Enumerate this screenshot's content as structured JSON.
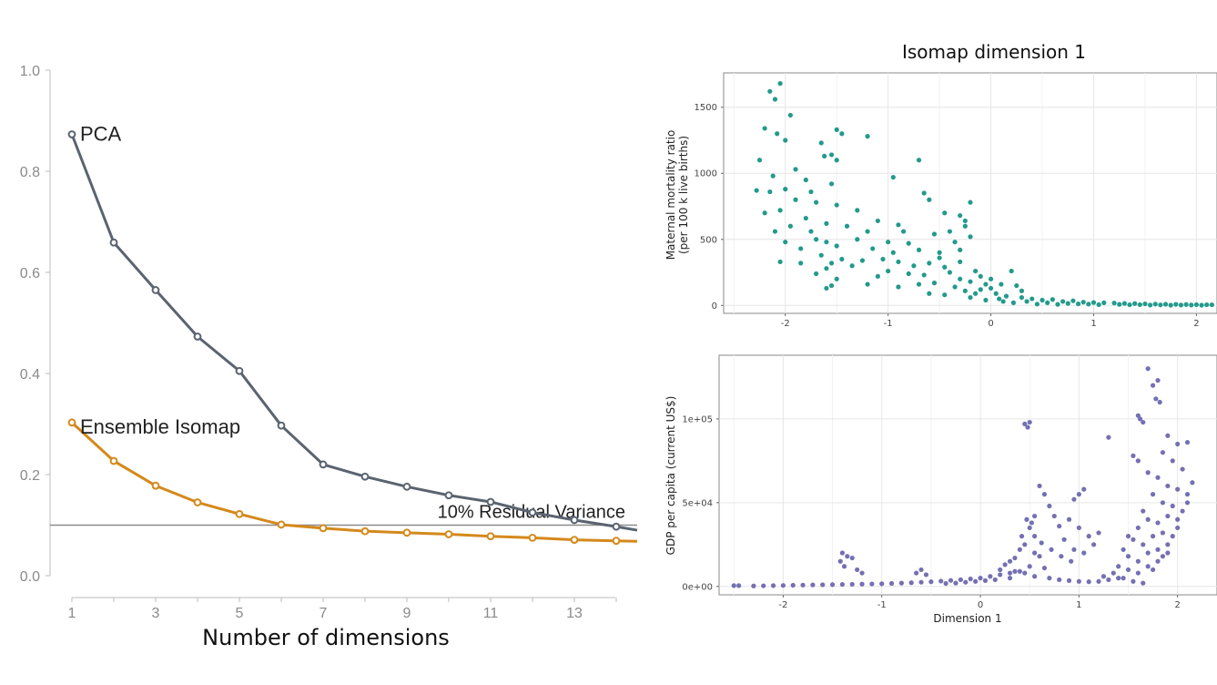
{
  "chart_data": [
    {
      "type": "line",
      "title": "",
      "xlabel": "Number of dimensions",
      "ylabel": "",
      "x": [
        1,
        2,
        3,
        4,
        5,
        6,
        7,
        8,
        9,
        10,
        11,
        12,
        13,
        14,
        14.5
      ],
      "xticks": [
        1,
        3,
        5,
        7,
        9,
        11,
        13
      ],
      "yticks": [
        "0.0",
        "0.2",
        "0.4",
        "0.6",
        "0.8",
        "1.0"
      ],
      "ylim": [
        0,
        1.0
      ],
      "xlim": [
        1,
        14.5
      ],
      "series": [
        {
          "name": "PCA",
          "color": "#5a6470",
          "values": [
            0.873,
            0.659,
            0.565,
            0.473,
            0.405,
            0.297,
            0.22,
            0.196,
            0.176,
            0.159,
            0.146,
            0.125,
            0.11,
            0.097,
            0.09
          ]
        },
        {
          "name": "Ensemble Isomap",
          "color": "#d4891a",
          "values": [
            0.303,
            0.227,
            0.178,
            0.145,
            0.122,
            0.101,
            0.094,
            0.088,
            0.085,
            0.082,
            0.078,
            0.075,
            0.071,
            0.069,
            0.068
          ]
        }
      ],
      "reference_line": {
        "y": 0.1,
        "label": "10% Residual Variance"
      },
      "grid": false
    },
    {
      "type": "scatter",
      "title": "Isomap dimension 1",
      "xlabel": "",
      "ylabel_line1": "Maternal mortality ratio",
      "ylabel_line2": "(per 100 k live births)",
      "xticks": [
        "-2",
        "-1",
        "0",
        "1",
        "2"
      ],
      "yticks": [
        "0",
        "500",
        "1000",
        "1500"
      ],
      "xlim": [
        -2.6,
        2.2
      ],
      "ylim": [
        -60,
        1760
      ],
      "color": "#229a8c",
      "grid": true,
      "points": [
        [
          -2.05,
          1680
        ],
        [
          -2.15,
          1620
        ],
        [
          -2.1,
          1560
        ],
        [
          -1.95,
          1440
        ],
        [
          -2.2,
          1340
        ],
        [
          -1.5,
          1330
        ],
        [
          -1.45,
          1300
        ],
        [
          -1.2,
          1280
        ],
        [
          -2.08,
          1300
        ],
        [
          -2.0,
          1250
        ],
        [
          -1.65,
          1230
        ],
        [
          -1.62,
          1130
        ],
        [
          -1.55,
          1140
        ],
        [
          -1.5,
          1100
        ],
        [
          -0.7,
          1100
        ],
        [
          -0.95,
          970
        ],
        [
          -2.25,
          1100
        ],
        [
          -1.9,
          1030
        ],
        [
          -2.12,
          980
        ],
        [
          -1.8,
          950
        ],
        [
          -2.0,
          880
        ],
        [
          -1.75,
          860
        ],
        [
          -2.15,
          860
        ],
        [
          -2.28,
          870
        ],
        [
          -1.55,
          920
        ],
        [
          -1.7,
          780
        ],
        [
          -1.9,
          800
        ],
        [
          -2.05,
          720
        ],
        [
          -2.2,
          700
        ],
        [
          -1.5,
          760
        ],
        [
          -1.3,
          720
        ],
        [
          -1.8,
          660
        ],
        [
          -1.6,
          620
        ],
        [
          -1.95,
          600
        ],
        [
          -2.1,
          560
        ],
        [
          -1.4,
          600
        ],
        [
          -1.2,
          560
        ],
        [
          -1.1,
          640
        ],
        [
          -0.9,
          610
        ],
        [
          -0.85,
          560
        ],
        [
          -0.3,
          680
        ],
        [
          -0.45,
          700
        ],
        [
          -0.25,
          640
        ],
        [
          -0.2,
          780
        ],
        [
          -0.6,
          800
        ],
        [
          -0.65,
          850
        ],
        [
          -1.75,
          560
        ],
        [
          -1.7,
          500
        ],
        [
          -1.6,
          480
        ],
        [
          -1.5,
          450
        ],
        [
          -1.85,
          430
        ],
        [
          -2.0,
          480
        ],
        [
          -1.3,
          500
        ],
        [
          -1.0,
          480
        ],
        [
          -0.8,
          470
        ],
        [
          -1.15,
          430
        ],
        [
          -0.7,
          420
        ],
        [
          -0.95,
          400
        ],
        [
          -0.5,
          400
        ],
        [
          -0.3,
          420
        ],
        [
          -0.35,
          480
        ],
        [
          -0.2,
          520
        ],
        [
          -0.55,
          540
        ],
        [
          -1.65,
          380
        ],
        [
          -1.45,
          350
        ],
        [
          -1.55,
          320
        ],
        [
          -1.25,
          340
        ],
        [
          -1.05,
          350
        ],
        [
          -0.9,
          330
        ],
        [
          -0.75,
          300
        ],
        [
          -0.6,
          320
        ],
        [
          -0.45,
          290
        ],
        [
          -1.35,
          300
        ],
        [
          -1.6,
          280
        ],
        [
          -1.7,
          240
        ],
        [
          -1.85,
          320
        ],
        [
          -2.05,
          330
        ],
        [
          -1.5,
          200
        ],
        [
          -1.55,
          150
        ],
        [
          -1.6,
          130
        ],
        [
          -1.1,
          220
        ],
        [
          -1.0,
          260
        ],
        [
          -0.8,
          240
        ],
        [
          -0.65,
          230
        ],
        [
          -0.4,
          250
        ],
        [
          -0.3,
          200
        ],
        [
          -0.2,
          180
        ],
        [
          -0.1,
          220
        ],
        [
          0.0,
          200
        ],
        [
          0.1,
          160
        ],
        [
          0.2,
          260
        ],
        [
          0.25,
          150
        ],
        [
          -1.2,
          160
        ],
        [
          -0.9,
          140
        ],
        [
          -0.7,
          160
        ],
        [
          -0.55,
          170
        ],
        [
          -0.35,
          140
        ],
        [
          -0.25,
          110
        ],
        [
          -0.1,
          120
        ],
        [
          0.05,
          90
        ],
        [
          0.15,
          70
        ],
        [
          0.3,
          60
        ],
        [
          -0.6,
          90
        ],
        [
          -0.45,
          80
        ],
        [
          -0.2,
          60
        ],
        [
          0.4,
          50
        ],
        [
          0.5,
          40
        ],
        [
          0.6,
          45
        ],
        [
          0.7,
          30
        ],
        [
          0.8,
          35
        ],
        [
          0.9,
          25
        ],
        [
          1.0,
          22
        ],
        [
          1.1,
          20
        ],
        [
          1.2,
          18
        ],
        [
          1.3,
          15
        ],
        [
          1.4,
          14
        ],
        [
          1.5,
          12
        ],
        [
          1.6,
          10
        ],
        [
          1.7,
          9
        ],
        [
          1.8,
          8
        ],
        [
          1.9,
          7
        ],
        [
          2.0,
          6
        ],
        [
          2.1,
          5
        ],
        [
          2.15,
          5
        ],
        [
          0.35,
          30
        ],
        [
          0.55,
          20
        ],
        [
          0.75,
          15
        ],
        [
          0.95,
          10
        ],
        [
          1.25,
          8
        ],
        [
          1.45,
          6
        ],
        [
          1.65,
          4
        ],
        [
          1.85,
          3
        ],
        [
          2.05,
          2
        ],
        [
          -0.05,
          40
        ],
        [
          0.12,
          30
        ],
        [
          0.22,
          20
        ],
        [
          0.45,
          10
        ],
        [
          0.65,
          8
        ],
        [
          0.85,
          12
        ],
        [
          1.05,
          6
        ],
        [
          1.35,
          5
        ],
        [
          1.55,
          3
        ],
        [
          1.75,
          2
        ],
        [
          1.95,
          3
        ],
        [
          0.3,
          110
        ],
        [
          0.0,
          130
        ],
        [
          -0.15,
          90
        ],
        [
          0.08,
          50
        ],
        [
          -0.05,
          160
        ],
        [
          -0.3,
          330
        ],
        [
          -0.5,
          360
        ],
        [
          -0.15,
          260
        ],
        [
          -0.4,
          560
        ],
        [
          -0.25,
          600
        ]
      ]
    },
    {
      "type": "scatter",
      "title": "",
      "xlabel": "Dimension 1",
      "ylabel": "GDP per capita (current US$)",
      "xticks": [
        "-2",
        "-1",
        "0",
        "1",
        "2"
      ],
      "yticks": [
        "0e+00",
        "5e+04",
        "1e+05"
      ],
      "xlim": [
        -2.65,
        2.4
      ],
      "ylim": [
        -5000,
        138000
      ],
      "color": "#7470b3",
      "grid": true,
      "points": [
        [
          -2.5,
          500
        ],
        [
          -2.45,
          500
        ],
        [
          -2.3,
          300
        ],
        [
          -2.2,
          400
        ],
        [
          -2.1,
          500
        ],
        [
          -2.0,
          600
        ],
        [
          -1.9,
          700
        ],
        [
          -1.8,
          800
        ],
        [
          -1.7,
          900
        ],
        [
          -1.6,
          1000
        ],
        [
          -1.5,
          1100
        ],
        [
          -1.4,
          1200
        ],
        [
          -1.3,
          1300
        ],
        [
          -1.2,
          1400
        ],
        [
          -1.1,
          1500
        ],
        [
          -1.0,
          1600
        ],
        [
          -0.9,
          1800
        ],
        [
          -0.8,
          2000
        ],
        [
          -0.7,
          2200
        ],
        [
          -0.6,
          2500
        ],
        [
          -0.5,
          2800
        ],
        [
          -0.4,
          3200
        ],
        [
          -0.3,
          3600
        ],
        [
          -0.2,
          4000
        ],
        [
          -0.1,
          4500
        ],
        [
          0.0,
          5000
        ],
        [
          0.1,
          6000
        ],
        [
          0.2,
          7000
        ],
        [
          0.3,
          8000
        ],
        [
          0.4,
          9000
        ],
        [
          -1.4,
          20000
        ],
        [
          -1.35,
          18000
        ],
        [
          -1.3,
          17000
        ],
        [
          -1.42,
          15000
        ],
        [
          -1.38,
          12000
        ],
        [
          -1.25,
          10000
        ],
        [
          -1.2,
          8000
        ],
        [
          -0.65,
          8000
        ],
        [
          -0.6,
          10000
        ],
        [
          -0.55,
          7000
        ],
        [
          0.5,
          98000
        ],
        [
          0.45,
          97000
        ],
        [
          0.48,
          95000
        ],
        [
          0.47,
          40000
        ],
        [
          0.52,
          38000
        ],
        [
          0.55,
          42000
        ],
        [
          0.5,
          35000
        ],
        [
          0.42,
          30000
        ],
        [
          0.45,
          25000
        ],
        [
          0.4,
          22000
        ],
        [
          0.55,
          20000
        ],
        [
          0.6,
          18000
        ],
        [
          0.35,
          17000
        ],
        [
          0.3,
          15000
        ],
        [
          0.25,
          13000
        ],
        [
          0.5,
          12000
        ],
        [
          0.65,
          11000
        ],
        [
          0.2,
          10000
        ],
        [
          0.35,
          9000
        ],
        [
          0.45,
          8000
        ],
        [
          0.55,
          6000
        ],
        [
          0.7,
          5000
        ],
        [
          0.8,
          4000
        ],
        [
          0.9,
          3500
        ],
        [
          1.0,
          3000
        ],
        [
          1.1,
          2800
        ],
        [
          1.2,
          3000
        ],
        [
          1.3,
          4000
        ],
        [
          1.4,
          5000
        ],
        [
          1.0,
          55000
        ],
        [
          1.05,
          58000
        ],
        [
          0.95,
          52000
        ],
        [
          0.9,
          40000
        ],
        [
          1.0,
          35000
        ],
        [
          1.1,
          30000
        ],
        [
          1.2,
          32000
        ],
        [
          1.15,
          25000
        ],
        [
          0.85,
          28000
        ],
        [
          0.95,
          22000
        ],
        [
          1.05,
          20000
        ],
        [
          1.3,
          89000
        ],
        [
          1.7,
          130000
        ],
        [
          1.75,
          120000
        ],
        [
          1.8,
          123000
        ],
        [
          1.78,
          112000
        ],
        [
          1.82,
          110000
        ],
        [
          1.6,
          102000
        ],
        [
          1.62,
          100000
        ],
        [
          1.65,
          98000
        ],
        [
          1.55,
          78000
        ],
        [
          1.6,
          75000
        ],
        [
          1.9,
          90000
        ],
        [
          2.0,
          85000
        ],
        [
          2.1,
          86000
        ],
        [
          1.85,
          80000
        ],
        [
          1.95,
          75000
        ],
        [
          2.05,
          70000
        ],
        [
          1.7,
          68000
        ],
        [
          1.8,
          65000
        ],
        [
          1.9,
          60000
        ],
        [
          2.0,
          58000
        ],
        [
          2.1,
          55000
        ],
        [
          1.75,
          55000
        ],
        [
          1.85,
          50000
        ],
        [
          1.95,
          48000
        ],
        [
          2.05,
          45000
        ],
        [
          1.65,
          45000
        ],
        [
          1.7,
          40000
        ],
        [
          1.8,
          38000
        ],
        [
          1.9,
          42000
        ],
        [
          2.0,
          40000
        ],
        [
          1.6,
          35000
        ],
        [
          1.5,
          30000
        ],
        [
          1.55,
          28000
        ],
        [
          1.65,
          25000
        ],
        [
          1.75,
          30000
        ],
        [
          1.85,
          32000
        ],
        [
          1.45,
          22000
        ],
        [
          1.5,
          18000
        ],
        [
          1.6,
          15000
        ],
        [
          1.7,
          20000
        ],
        [
          1.8,
          22000
        ],
        [
          1.9,
          25000
        ],
        [
          1.4,
          12000
        ],
        [
          1.5,
          10000
        ],
        [
          1.6,
          8000
        ],
        [
          1.7,
          12000
        ],
        [
          1.8,
          15000
        ],
        [
          1.35,
          8000
        ],
        [
          1.25,
          6000
        ],
        [
          1.45,
          5000
        ],
        [
          1.55,
          3000
        ],
        [
          1.65,
          2000
        ],
        [
          2.15,
          62000
        ],
        [
          2.1,
          50000
        ],
        [
          2.0,
          35000
        ],
        [
          1.95,
          30000
        ],
        [
          1.9,
          20000
        ],
        [
          1.85,
          18000
        ],
        [
          1.75,
          10000
        ],
        [
          0.6,
          60000
        ],
        [
          0.65,
          55000
        ],
        [
          0.7,
          48000
        ],
        [
          0.75,
          42000
        ],
        [
          0.8,
          36000
        ],
        [
          0.55,
          30000
        ],
        [
          0.62,
          26000
        ],
        [
          0.72,
          22000
        ],
        [
          0.82,
          18000
        ],
        [
          0.92,
          15000
        ],
        [
          0.3,
          5000
        ],
        [
          0.15,
          4000
        ],
        [
          0.05,
          3500
        ],
        [
          -0.05,
          3000
        ],
        [
          -0.15,
          2500
        ],
        [
          -0.25,
          2000
        ],
        [
          -0.35,
          1800
        ]
      ]
    }
  ]
}
